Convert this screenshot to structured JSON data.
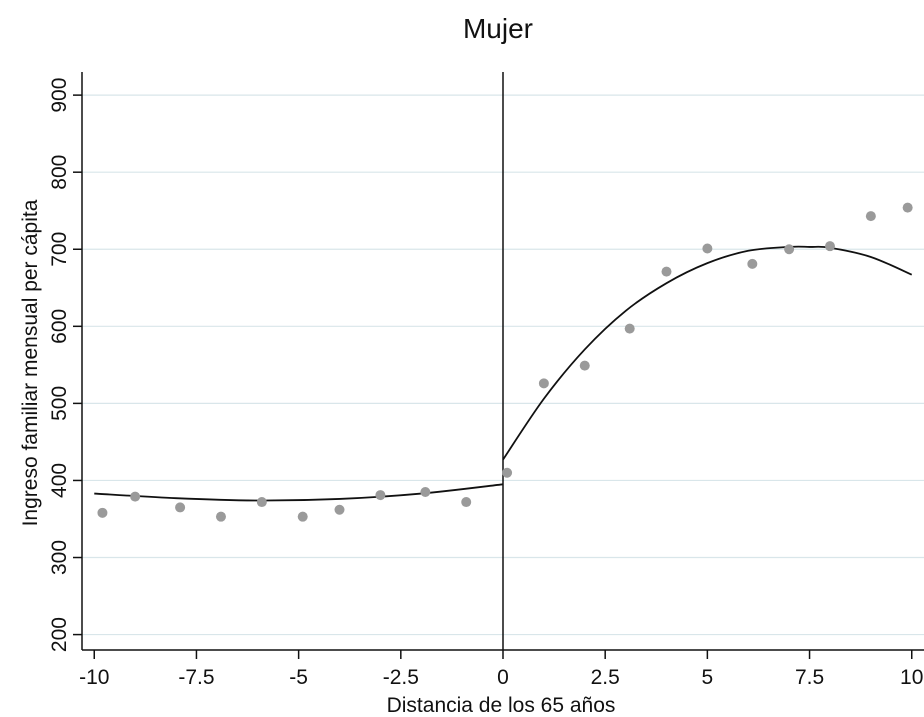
{
  "chart_data": {
    "type": "scatter",
    "title": "Mujer",
    "xlabel": "Distancia de los 65 años",
    "ylabel": "Ingreso familiar mensual per cápita",
    "xlim": [
      -10.3,
      10.3
    ],
    "ylim": [
      180,
      930
    ],
    "xticks": [
      -10,
      -7.5,
      -5,
      -2.5,
      0,
      2.5,
      5,
      7.5,
      10
    ],
    "xtick_labels": [
      "-10",
      "-7.5",
      "-5",
      "-2.5",
      "0",
      "2.5",
      "5",
      "7.5",
      "10"
    ],
    "yticks": [
      200,
      300,
      400,
      500,
      600,
      700,
      800,
      900
    ],
    "ytick_labels": [
      "200",
      "300",
      "400",
      "500",
      "600",
      "700",
      "800",
      "900"
    ],
    "grid": "horizontal",
    "cutoff_line_x": 0,
    "points": [
      {
        "x": -9.8,
        "y": 358
      },
      {
        "x": -9.0,
        "y": 379
      },
      {
        "x": -7.9,
        "y": 365
      },
      {
        "x": -6.9,
        "y": 353
      },
      {
        "x": -5.9,
        "y": 372
      },
      {
        "x": -4.9,
        "y": 353
      },
      {
        "x": -4.0,
        "y": 362
      },
      {
        "x": -3.0,
        "y": 381
      },
      {
        "x": -1.9,
        "y": 385
      },
      {
        "x": -0.9,
        "y": 372
      },
      {
        "x": 0.1,
        "y": 410
      },
      {
        "x": 1.0,
        "y": 526
      },
      {
        "x": 2.0,
        "y": 549
      },
      {
        "x": 3.1,
        "y": 597
      },
      {
        "x": 4.0,
        "y": 671
      },
      {
        "x": 5.0,
        "y": 701
      },
      {
        "x": 6.1,
        "y": 681
      },
      {
        "x": 7.0,
        "y": 700
      },
      {
        "x": 8.0,
        "y": 704
      },
      {
        "x": 9.0,
        "y": 743
      },
      {
        "x": 9.9,
        "y": 754
      }
    ],
    "fit_left": [
      {
        "x": -10,
        "y": 383
      },
      {
        "x": -8,
        "y": 377
      },
      {
        "x": -6,
        "y": 374
      },
      {
        "x": -4,
        "y": 376
      },
      {
        "x": -2,
        "y": 383
      },
      {
        "x": 0,
        "y": 395
      }
    ],
    "fit_right": [
      {
        "x": 0,
        "y": 427
      },
      {
        "x": 1,
        "y": 506
      },
      {
        "x": 2,
        "y": 570
      },
      {
        "x": 3,
        "y": 620
      },
      {
        "x": 4,
        "y": 656
      },
      {
        "x": 5,
        "y": 682
      },
      {
        "x": 6,
        "y": 698
      },
      {
        "x": 7,
        "y": 703
      },
      {
        "x": 7.5,
        "y": 703
      },
      {
        "x": 8,
        "y": 702
      },
      {
        "x": 9,
        "y": 690
      },
      {
        "x": 10,
        "y": 667
      }
    ],
    "colors": {
      "points": "#9a9a9a",
      "fit": "#111111",
      "grid": "#d9e6ea",
      "axis": "#111111"
    }
  }
}
